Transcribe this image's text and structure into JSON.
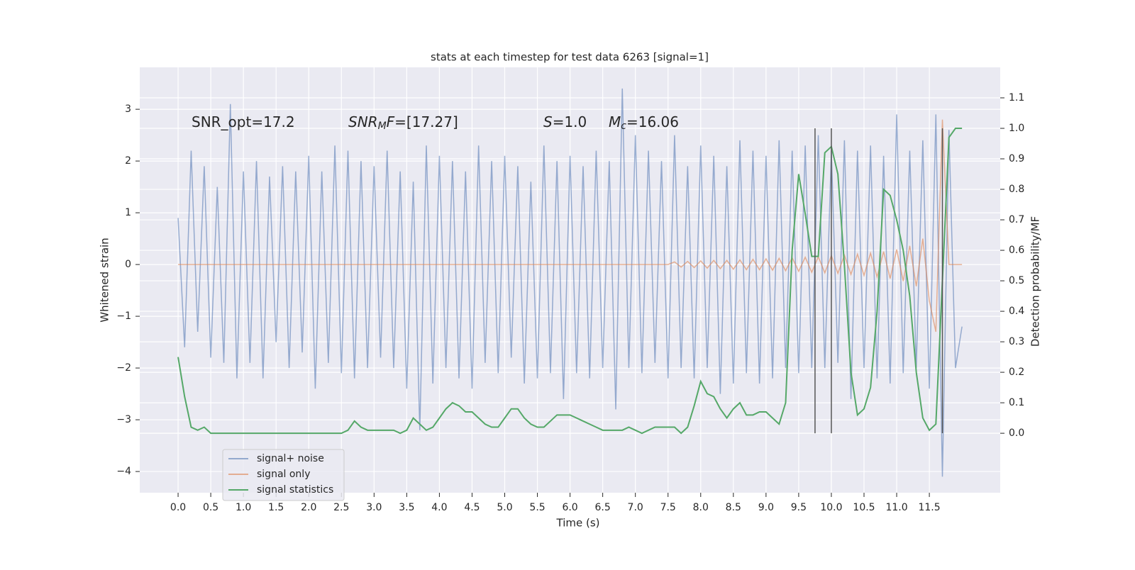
{
  "chart_data": {
    "type": "line",
    "title": "stats at each timestep for test data 6263 [signal=1]",
    "xlabel": "Time (s)",
    "ylabel": "Whitened strain",
    "y2label": "Detection probability/MF",
    "grid": true,
    "legend": "lower left",
    "xlim": [
      -0.587,
      12.585
    ],
    "xticks": [
      {
        "value": 0,
        "label": "0.0"
      },
      0.5,
      {
        "value": 1,
        "label": "1.0"
      },
      1.5,
      {
        "value": 2,
        "label": "2.0"
      },
      2.5,
      {
        "value": 3,
        "label": "3.0"
      },
      3.5,
      {
        "value": 4,
        "label": "4.0"
      },
      4.5,
      {
        "value": 5,
        "label": "5.0"
      },
      5.5,
      {
        "value": 6,
        "label": "6.0"
      },
      6.5,
      {
        "value": 7,
        "label": "7.0"
      },
      7.5,
      {
        "value": 8,
        "label": "8.0"
      },
      8.5,
      {
        "value": 9,
        "label": "9.0"
      },
      9.5,
      {
        "value": 10,
        "label": "10.0"
      },
      10.5,
      {
        "value": 11,
        "label": "11.0"
      },
      11.5
    ],
    "ylim": [
      -4.41,
      3.81
    ],
    "yticks": [
      {
        "value": -4,
        "label": "−4"
      },
      {
        "value": -3,
        "label": "−3"
      },
      {
        "value": -2,
        "label": "−2"
      },
      {
        "value": -1,
        "label": "−1"
      },
      0,
      1,
      2,
      3
    ],
    "y2lim": [
      -0.195,
      1.2
    ],
    "y2ticks": [
      {
        "value": 0,
        "label": "0.0"
      },
      0.1,
      0.2,
      0.3,
      0.4,
      0.5,
      0.6,
      0.7,
      0.8,
      0.9,
      {
        "value": 1,
        "label": "1.0"
      },
      1.1
    ],
    "x": [
      0,
      0.1,
      0.2,
      0.3,
      0.4,
      0.5,
      0.6,
      0.7,
      0.8,
      0.9,
      1,
      1.1,
      1.2,
      1.3,
      1.4,
      1.5,
      1.6,
      1.7,
      1.8,
      1.9,
      2,
      2.1,
      2.2,
      2.3,
      2.4,
      2.5,
      2.6,
      2.7,
      2.8,
      2.9,
      3,
      3.1,
      3.2,
      3.3,
      3.4,
      3.5,
      3.6,
      3.7,
      3.8,
      3.9,
      4,
      4.1,
      4.2,
      4.3,
      4.4,
      4.5,
      4.6,
      4.7,
      4.8,
      4.9,
      5,
      5.1,
      5.2,
      5.3,
      5.4,
      5.5,
      5.6,
      5.7,
      5.8,
      5.9,
      6,
      6.1,
      6.2,
      6.3,
      6.4,
      6.5,
      6.6,
      6.7,
      6.8,
      6.9,
      7,
      7.1,
      7.2,
      7.3,
      7.4,
      7.5,
      7.6,
      7.7,
      7.8,
      7.9,
      8,
      8.1,
      8.2,
      8.3,
      8.4,
      8.5,
      8.6,
      8.7,
      8.8,
      8.9,
      9,
      9.1,
      9.2,
      9.3,
      9.4,
      9.5,
      9.6,
      9.7,
      9.8,
      9.9,
      10,
      10.1,
      10.2,
      10.3,
      10.4,
      10.5,
      10.6,
      10.7,
      10.8,
      10.9,
      11,
      11.1,
      11.2,
      11.3,
      11.4,
      11.5,
      11.6,
      11.7,
      11.8,
      11.9,
      12
    ],
    "series": [
      {
        "name": "signal+ noise",
        "color": "#4c72b0",
        "alpha": 0.55,
        "values": [
          0.9,
          -1.6,
          2.2,
          -1.3,
          1.9,
          -1.8,
          1.5,
          -1.9,
          3.1,
          -2.2,
          1.8,
          -1.9,
          2.0,
          -2.2,
          1.7,
          -1.5,
          1.9,
          -2.0,
          1.8,
          -1.7,
          2.1,
          -2.4,
          1.8,
          -1.9,
          2.3,
          -2.1,
          2.2,
          -2.2,
          2.0,
          -2.0,
          1.9,
          -1.8,
          2.2,
          -2.0,
          1.8,
          -2.4,
          1.6,
          -3.2,
          2.3,
          -2.3,
          2.1,
          -2.0,
          2.0,
          -2.2,
          1.8,
          -2.4,
          2.3,
          -1.9,
          2.0,
          -2.1,
          2.1,
          -1.8,
          1.9,
          -2.3,
          1.6,
          -2.2,
          2.3,
          -2.1,
          2.0,
          -2.6,
          2.1,
          -2.1,
          1.9,
          -2.2,
          2.2,
          -2.0,
          2.0,
          -2.8,
          3.4,
          -2.0,
          2.5,
          -2.1,
          2.2,
          -1.9,
          2.0,
          -2.2,
          2.5,
          -2.0,
          1.9,
          -2.2,
          2.3,
          -2.0,
          2.1,
          -2.5,
          1.9,
          -2.3,
          2.4,
          -2.1,
          2.2,
          -2.3,
          2.1,
          -2.2,
          2.4,
          -2.0,
          2.2,
          -2.1,
          2.3,
          -2.0,
          2.5,
          -2.0,
          2.2,
          -1.9,
          2.4,
          -2.6,
          2.2,
          -2.0,
          2.3,
          -2.2,
          2.1,
          -2.3,
          2.9,
          -2.1,
          2.2,
          -2.0,
          2.4,
          -2.4,
          2.9,
          -4.1,
          2.6,
          -2.0,
          -1.2
        ]
      },
      {
        "name": "signal only",
        "color": "#dd8452",
        "alpha": 0.6,
        "values": [
          0,
          0,
          0,
          0,
          0,
          0,
          0,
          0,
          0,
          0,
          0,
          0,
          0,
          0,
          0,
          0,
          0,
          0,
          0,
          0,
          0,
          0,
          0,
          0,
          0,
          0,
          0,
          0,
          0,
          0,
          0,
          0,
          0,
          0,
          0,
          0,
          0,
          0,
          0,
          0,
          0,
          0,
          0,
          0,
          0,
          0,
          0,
          0,
          0,
          0,
          0,
          0,
          0,
          0,
          0,
          0,
          0,
          0,
          0,
          0,
          0,
          0,
          0,
          0,
          0,
          0,
          0,
          0,
          0,
          0,
          0,
          0,
          0,
          0,
          0,
          0,
          0.05,
          -0.05,
          0.06,
          -0.06,
          0.07,
          -0.07,
          0.08,
          -0.08,
          0.08,
          -0.09,
          0.09,
          -0.1,
          0.1,
          -0.1,
          0.11,
          -0.11,
          0.12,
          -0.12,
          0.13,
          -0.13,
          0.14,
          -0.15,
          0.15,
          -0.16,
          0.17,
          -0.17,
          0.18,
          -0.19,
          0.2,
          -0.21,
          0.22,
          -0.24,
          0.25,
          -0.27,
          0.29,
          -0.32,
          0.36,
          -0.42,
          0.5,
          -0.7,
          -1.3,
          2.8,
          0,
          0,
          0
        ]
      },
      {
        "name": "signal statistics",
        "color": "#55a868",
        "alpha": 1,
        "axis": "y2",
        "values": [
          0.25,
          0.12,
          0.02,
          0.01,
          0.02,
          0,
          0,
          0,
          0,
          0,
          0,
          0,
          0,
          0,
          0,
          0,
          0,
          0,
          0,
          0,
          0,
          0,
          0,
          0,
          0,
          0,
          0.01,
          0.04,
          0.02,
          0.01,
          0.01,
          0.01,
          0.01,
          0.01,
          0,
          0.01,
          0.05,
          0.03,
          0.01,
          0.02,
          0.05,
          0.08,
          0.1,
          0.09,
          0.07,
          0.07,
          0.05,
          0.03,
          0.02,
          0.02,
          0.05,
          0.08,
          0.08,
          0.05,
          0.03,
          0.02,
          0.02,
          0.04,
          0.06,
          0.06,
          0.06,
          0.05,
          0.04,
          0.03,
          0.02,
          0.01,
          0.01,
          0.01,
          0.01,
          0.02,
          0.01,
          0,
          0.01,
          0.02,
          0.02,
          0.02,
          0.02,
          0,
          0.02,
          0.09,
          0.17,
          0.13,
          0.12,
          0.08,
          0.05,
          0.08,
          0.1,
          0.06,
          0.06,
          0.07,
          0.07,
          0.05,
          0.03,
          0.1,
          0.6,
          0.85,
          0.72,
          0.58,
          0.58,
          0.92,
          0.94,
          0.85,
          0.55,
          0.2,
          0.06,
          0.08,
          0.15,
          0.4,
          0.8,
          0.78,
          0.7,
          0.6,
          0.45,
          0.2,
          0.05,
          0.01,
          0.03,
          0.5,
          0.97,
          1,
          1
        ]
      }
    ],
    "vlines": {
      "x": [
        9.75,
        10,
        11.7
      ],
      "ymin": 0,
      "ymax": 1,
      "color": "#555555"
    },
    "annotations": [
      [
        {
          "text": "SNR_opt=17.2",
          "style": "normal"
        }
      ],
      [
        {
          "text": "SNR",
          "style": "italic"
        },
        {
          "text": "M",
          "style": "sub"
        },
        {
          "text": "F",
          "style": "italic"
        },
        {
          "text": "=[17.27]",
          "style": "normal"
        }
      ],
      [
        {
          "text": "S",
          "style": "italic"
        },
        {
          "text": "=1.0",
          "style": "normal"
        }
      ],
      [
        {
          "text": "M",
          "style": "italic"
        },
        {
          "text": "c",
          "style": "sub"
        },
        {
          "text": "=16.06",
          "style": "normal"
        }
      ]
    ]
  }
}
